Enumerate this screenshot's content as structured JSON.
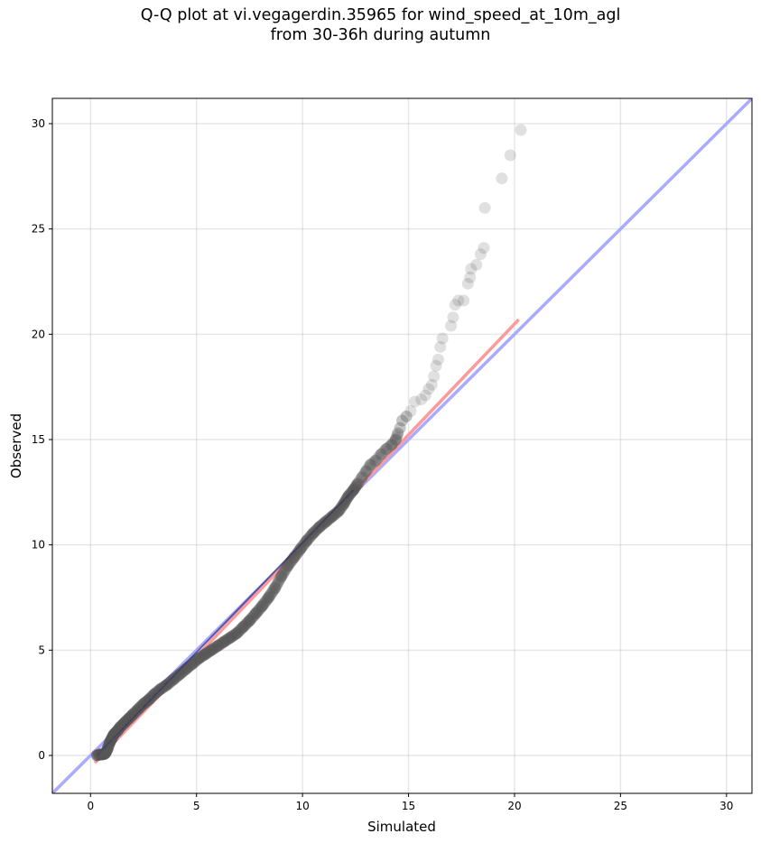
{
  "chart_data": {
    "type": "scatter",
    "title_line1": "Q-Q plot at vi.vegagerdin.35965 for wind_speed_at_10m_agl",
    "title_line2": "from 30-36h during autumn",
    "xlabel": "Simulated",
    "ylabel": "Observed",
    "xlim": [
      -1.8,
      31.2
    ],
    "ylim": [
      -1.8,
      31.2
    ],
    "xticks": [
      "0",
      "5",
      "10",
      "15",
      "20",
      "25",
      "30"
    ],
    "yticks": [
      "0",
      "5",
      "10",
      "15",
      "20",
      "25",
      "30"
    ],
    "grid": true,
    "reference_line": {
      "from": [
        -1.8,
        -1.8
      ],
      "to": [
        31.2,
        31.2
      ],
      "color": "#aaaaff"
    },
    "fit_line": {
      "from": [
        0.2,
        -0.35
      ],
      "to": [
        20.2,
        20.7
      ],
      "color": "#ff9a9a"
    },
    "dense_segment": {
      "from": [
        0.3,
        0.0
      ],
      "to": [
        12.4,
        12.6
      ],
      "color": "#1a1a6a"
    },
    "point_color": "#555555",
    "quantiles": [
      {
        "x": 0.3,
        "y": 0.0
      },
      {
        "x": 0.45,
        "y": 0.05
      },
      {
        "x": 0.6,
        "y": 0.05
      },
      {
        "x": 0.7,
        "y": 0.1
      },
      {
        "x": 0.8,
        "y": 0.3
      },
      {
        "x": 0.9,
        "y": 0.6
      },
      {
        "x": 1.0,
        "y": 0.8
      },
      {
        "x": 1.1,
        "y": 1.0
      },
      {
        "x": 1.25,
        "y": 1.15
      },
      {
        "x": 1.4,
        "y": 1.35
      },
      {
        "x": 1.6,
        "y": 1.55
      },
      {
        "x": 1.8,
        "y": 1.75
      },
      {
        "x": 2.0,
        "y": 1.95
      },
      {
        "x": 2.25,
        "y": 2.2
      },
      {
        "x": 2.5,
        "y": 2.45
      },
      {
        "x": 2.75,
        "y": 2.65
      },
      {
        "x": 3.0,
        "y": 2.9
      },
      {
        "x": 3.3,
        "y": 3.15
      },
      {
        "x": 3.6,
        "y": 3.35
      },
      {
        "x": 3.9,
        "y": 3.6
      },
      {
        "x": 4.2,
        "y": 3.85
      },
      {
        "x": 4.5,
        "y": 4.1
      },
      {
        "x": 4.8,
        "y": 4.35
      },
      {
        "x": 5.1,
        "y": 4.6
      },
      {
        "x": 5.4,
        "y": 4.8
      },
      {
        "x": 5.7,
        "y": 5.0
      },
      {
        "x": 6.0,
        "y": 5.2
      },
      {
        "x": 6.3,
        "y": 5.4
      },
      {
        "x": 6.6,
        "y": 5.6
      },
      {
        "x": 6.9,
        "y": 5.8
      },
      {
        "x": 7.2,
        "y": 6.1
      },
      {
        "x": 7.5,
        "y": 6.4
      },
      {
        "x": 7.8,
        "y": 6.75
      },
      {
        "x": 8.1,
        "y": 7.1
      },
      {
        "x": 8.4,
        "y": 7.5
      },
      {
        "x": 8.7,
        "y": 7.95
      },
      {
        "x": 9.0,
        "y": 8.5
      },
      {
        "x": 9.3,
        "y": 9.0
      },
      {
        "x": 9.6,
        "y": 9.4
      },
      {
        "x": 9.9,
        "y": 9.8
      },
      {
        "x": 10.2,
        "y": 10.2
      },
      {
        "x": 10.5,
        "y": 10.55
      },
      {
        "x": 10.8,
        "y": 10.85
      },
      {
        "x": 11.1,
        "y": 11.1
      },
      {
        "x": 11.4,
        "y": 11.35
      },
      {
        "x": 11.7,
        "y": 11.6
      },
      {
        "x": 11.95,
        "y": 11.95
      },
      {
        "x": 12.15,
        "y": 12.3
      },
      {
        "x": 12.4,
        "y": 12.6
      },
      {
        "x": 12.6,
        "y": 12.9
      },
      {
        "x": 12.8,
        "y": 13.2
      },
      {
        "x": 13.0,
        "y": 13.5
      },
      {
        "x": 13.2,
        "y": 13.8
      },
      {
        "x": 13.45,
        "y": 14.0
      },
      {
        "x": 13.7,
        "y": 14.3
      },
      {
        "x": 13.95,
        "y": 14.55
      },
      {
        "x": 14.2,
        "y": 14.75
      },
      {
        "x": 14.4,
        "y": 15.0
      },
      {
        "x": 14.5,
        "y": 15.3
      },
      {
        "x": 14.6,
        "y": 15.55
      },
      {
        "x": 14.7,
        "y": 15.9
      },
      {
        "x": 14.9,
        "y": 16.1
      },
      {
        "x": 15.1,
        "y": 16.35
      },
      {
        "x": 15.3,
        "y": 16.8
      },
      {
        "x": 15.6,
        "y": 16.9
      },
      {
        "x": 15.8,
        "y": 17.1
      },
      {
        "x": 15.95,
        "y": 17.4
      },
      {
        "x": 16.1,
        "y": 17.6
      },
      {
        "x": 16.2,
        "y": 18.0
      },
      {
        "x": 16.3,
        "y": 18.5
      },
      {
        "x": 16.4,
        "y": 18.8
      },
      {
        "x": 16.5,
        "y": 19.4
      },
      {
        "x": 16.6,
        "y": 19.8
      },
      {
        "x": 17.0,
        "y": 20.4
      },
      {
        "x": 17.1,
        "y": 20.8
      },
      {
        "x": 17.2,
        "y": 21.4
      },
      {
        "x": 17.35,
        "y": 21.6
      },
      {
        "x": 17.6,
        "y": 21.6
      },
      {
        "x": 17.8,
        "y": 22.4
      },
      {
        "x": 17.9,
        "y": 22.7
      },
      {
        "x": 17.95,
        "y": 23.1
      },
      {
        "x": 18.2,
        "y": 23.3
      },
      {
        "x": 18.4,
        "y": 23.8
      },
      {
        "x": 18.55,
        "y": 24.1
      },
      {
        "x": 18.6,
        "y": 26.0
      },
      {
        "x": 19.4,
        "y": 27.4
      },
      {
        "x": 19.8,
        "y": 28.5
      },
      {
        "x": 20.3,
        "y": 29.7
      }
    ]
  }
}
